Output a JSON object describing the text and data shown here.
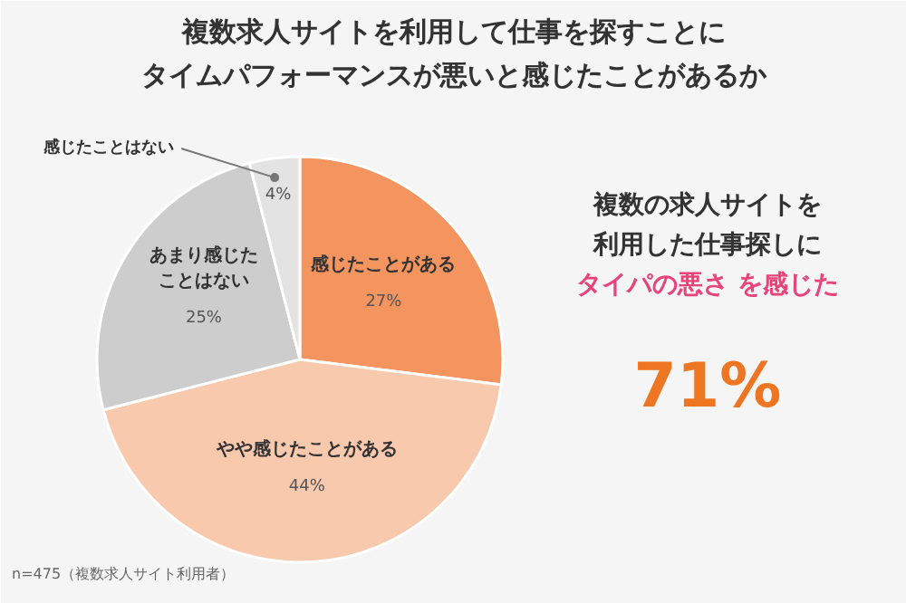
{
  "chart_data": {
    "type": "pie",
    "title": "複数求人サイトを利用して仕事を探すことに",
    "subtitle": "タイムパフォーマンスが悪いと感じたことがあるか",
    "categories": [
      "感じたことがある",
      "やや感じたことがある",
      "あまり感じたことはない",
      "感じたことはない"
    ],
    "values": [
      27,
      44,
      25,
      4
    ],
    "colors": [
      "#f4955f",
      "#f9c9ae",
      "#cdcdcd",
      "#e3e3e3"
    ],
    "value_labels": [
      "27%",
      "44%",
      "25%",
      "4%"
    ],
    "annotations": [
      "複数の求人サイトを",
      "利用した仕事探しに",
      "タイパの悪さ を感じた",
      "71%",
      "n=475（複数求人サイト利用者）"
    ]
  }
}
